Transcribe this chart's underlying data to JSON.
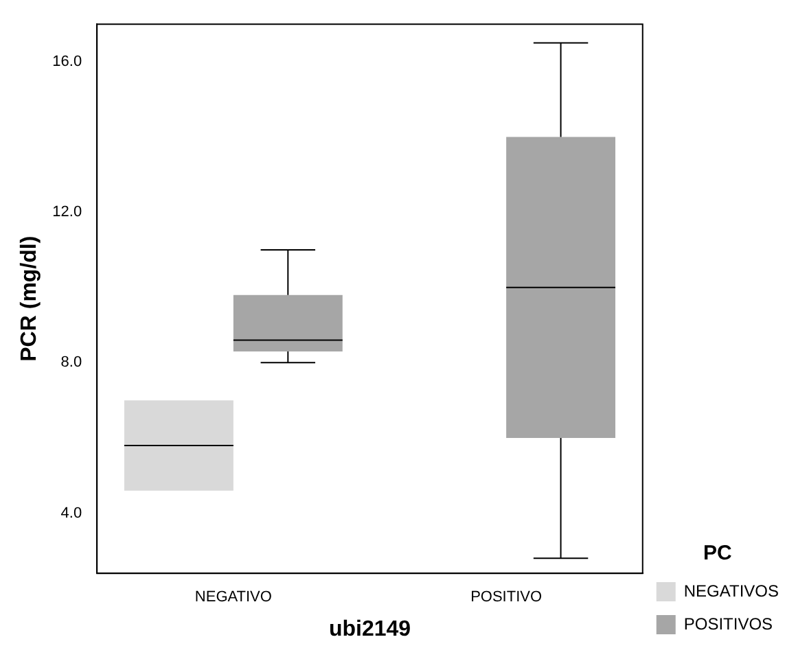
{
  "chart_data": {
    "type": "box",
    "xlabel": "ubi2149",
    "ylabel": "PCR (mg/dl)",
    "legend_title": "PC",
    "categories": [
      "NEGATIVO",
      "POSITIVO"
    ],
    "series": [
      {
        "name": "NEGATIVOS",
        "color": "#d9d9d9",
        "boxes": [
          {
            "low": 4.6,
            "q1": 4.6,
            "median": 5.8,
            "q3": 7.0,
            "high": 7.0
          },
          null
        ]
      },
      {
        "name": "POSITIVOS",
        "color": "#a6a6a6",
        "boxes": [
          {
            "low": 8.0,
            "q1": 8.3,
            "median": 8.6,
            "q3": 9.8,
            "high": 11.0
          },
          {
            "low": 2.8,
            "q1": 6.0,
            "median": 10.0,
            "q3": 14.0,
            "high": 16.5
          }
        ]
      }
    ],
    "ylim": [
      2.4,
      17
    ],
    "yticks": [
      {
        "value": 4,
        "label": "4.0"
      },
      {
        "value": 8,
        "label": "8.0"
      },
      {
        "value": 12,
        "label": "12.0"
      },
      {
        "value": 16,
        "label": "16.0"
      }
    ],
    "grid": false,
    "legend": "bottom right"
  }
}
